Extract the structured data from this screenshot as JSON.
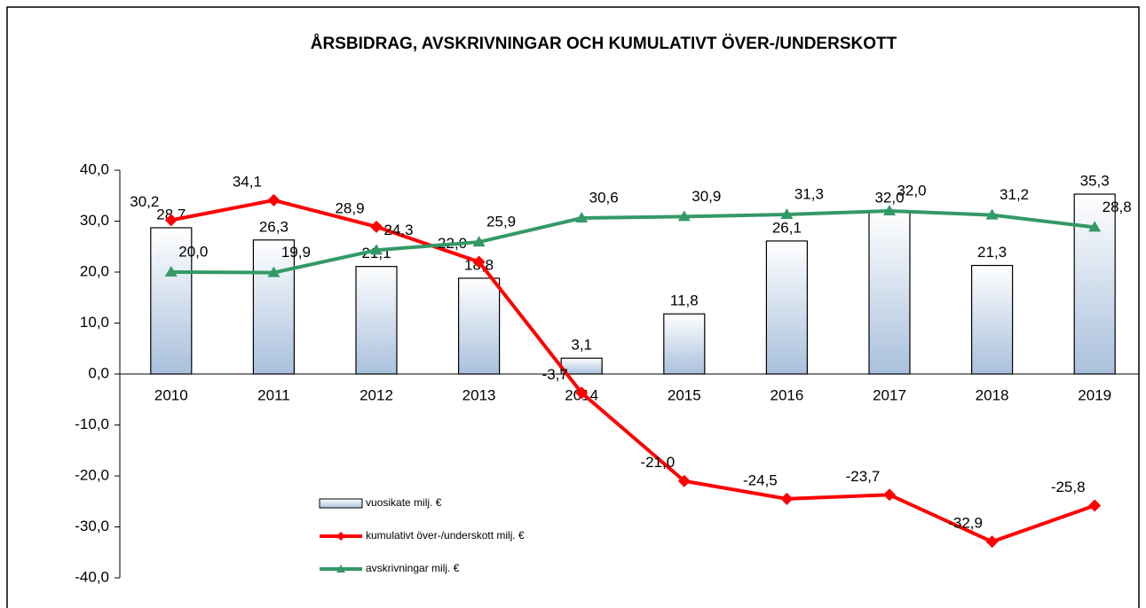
{
  "chart_data": {
    "type": "bar-line",
    "title": "ÅRSBIDRAG,  AVSKRIVNINGAR  OCH KUMULATIVT  ÖVER-/UNDERSKOTT",
    "categories": [
      "2010",
      "2011",
      "2012",
      "2013",
      "2014",
      "2015",
      "2016",
      "2017",
      "2018",
      "2019"
    ],
    "ylim": [
      -40,
      40
    ],
    "yticks": [
      {
        "value": -40,
        "label": "-40,0"
      },
      {
        "value": -30,
        "label": "-30,0"
      },
      {
        "value": -20,
        "label": "-20,0"
      },
      {
        "value": -10,
        "label": "-10,0"
      },
      {
        "value": 0,
        "label": "0,0"
      },
      {
        "value": 10,
        "label": "10,0"
      },
      {
        "value": 20,
        "label": "20,0"
      },
      {
        "value": 30,
        "label": "30,0"
      },
      {
        "value": 40,
        "label": "40,0"
      }
    ],
    "series": [
      {
        "name": "vuosikate milj. €",
        "type": "bar",
        "color": "#a9c0dc",
        "values": [
          28.7,
          26.3,
          21.1,
          18.8,
          3.1,
          11.8,
          26.1,
          32.0,
          21.3,
          35.3
        ],
        "value_labels": [
          "28,7",
          "26,3",
          "21,1",
          "18,8",
          "3,1",
          "11,8",
          "26,1",
          "32,0",
          "21,3",
          "35,3"
        ]
      },
      {
        "name": "kumulativt över-/underskott milj. €",
        "type": "line",
        "color": "#ff0000",
        "values": [
          30.2,
          34.1,
          28.9,
          22.0,
          -3.7,
          -21.0,
          -24.5,
          -23.7,
          -32.9,
          -25.8
        ],
        "value_labels": [
          "30,2",
          "34,1",
          "28,9",
          "22,0",
          "-3,7",
          "-21,0",
          "-24,5",
          "-23,7",
          "-32,9",
          "-25,8"
        ]
      },
      {
        "name": "avskrivningar milj. €",
        "type": "line",
        "color": "#339966",
        "values": [
          20.0,
          19.9,
          24.3,
          25.9,
          30.6,
          30.9,
          31.3,
          32.0,
          31.2,
          28.8
        ],
        "value_labels": [
          "20,0",
          "19,9",
          "24,3",
          "25,9",
          "30,6",
          "30,9",
          "31,3",
          "32,0",
          "31,2",
          "28,8"
        ]
      }
    ]
  }
}
